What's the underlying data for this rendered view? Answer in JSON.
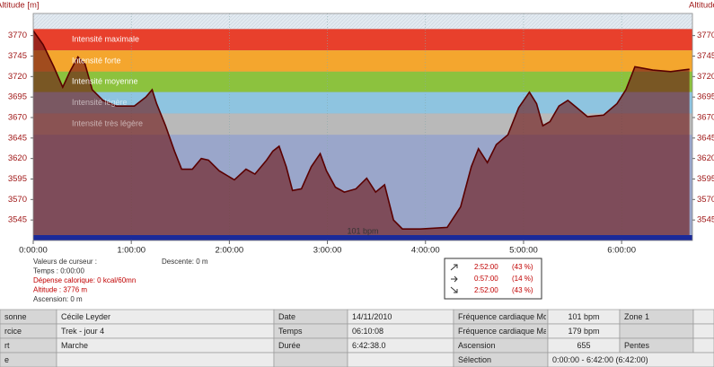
{
  "chart_data": {
    "type": "area",
    "y_label": "Altitude [m]",
    "y2_label": "Altitude",
    "x": [
      0,
      361,
      755,
      1083,
      1346,
      1641,
      1904,
      2166,
      2560,
      3052,
      3709,
      4135,
      4365,
      4529,
      4857,
      5186,
      5448,
      5842,
      6170,
      6433,
      6826,
      7384,
      7811,
      8139,
      8566,
      8796,
      9026,
      9288,
      9518,
      9846,
      10207,
      10535,
      10765,
      11093,
      11421,
      11848,
      12242,
      12570,
      12898,
      13226,
      13555,
      14211,
      15196,
      15688,
      16082,
      16344,
      16672,
      17000,
      17427,
      17821,
      18215,
      18477,
      18707,
      18970,
      19298,
      19626,
      19954,
      20348,
      20939,
      21431,
      21759,
      22088,
      22744,
      23400,
      24090
    ],
    "series": [
      {
        "name": "Altitude",
        "color": "#5a0000",
        "values": [
          3776,
          3759,
          3732,
          3707,
          3726,
          3744,
          3735,
          3704,
          3691,
          3684,
          3684,
          3695,
          3704,
          3687,
          3660,
          3629,
          3607,
          3607,
          3620,
          3618,
          3605,
          3594,
          3607,
          3601,
          3618,
          3629,
          3635,
          3610,
          3581,
          3583,
          3610,
          3626,
          3605,
          3585,
          3579,
          3583,
          3596,
          3579,
          3588,
          3545,
          3534,
          3534,
          3536,
          3561,
          3610,
          3632,
          3615,
          3637,
          3649,
          3682,
          3701,
          3687,
          3660,
          3665,
          3684,
          3691,
          3682,
          3671,
          3673,
          3687,
          3704,
          3732,
          3728,
          3726,
          3729
        ]
      }
    ],
    "zones": [
      {
        "name": "Intensité maximale",
        "color": "#e8402c",
        "from": 3752,
        "to": 3778
      },
      {
        "name": "Intensité forte",
        "color": "#f4a62e",
        "from": 3726,
        "to": 3752
      },
      {
        "name": "Intensité moyenne",
        "color": "#8cc23e",
        "from": 3701,
        "to": 3726
      },
      {
        "name": "Intensité légère",
        "color": "#8ec4e0",
        "from": 3675,
        "to": 3701
      },
      {
        "name": "Intensité très légère",
        "color": "#b9b9b9",
        "from": 3649,
        "to": 3675
      }
    ],
    "annotation": "101 bpm",
    "xlim": [
      0,
      24200
    ],
    "ylim": [
      3520,
      3797
    ],
    "xticks": [
      {
        "value": 0,
        "label": "0:00:00"
      },
      {
        "value": 3600,
        "label": "1:00:00"
      },
      {
        "value": 7200,
        "label": "2:00:00"
      },
      {
        "value": 10800,
        "label": "3:00:00"
      },
      {
        "value": 14400,
        "label": "4:00:00"
      },
      {
        "value": 18000,
        "label": "5:00:00"
      },
      {
        "value": 21600,
        "label": "6:00:00"
      }
    ],
    "yticks": [
      3545,
      3570,
      3595,
      3620,
      3645,
      3670,
      3695,
      3720,
      3745,
      3770
    ],
    "grid": true
  },
  "cursor": {
    "title": "Valeurs de curseur :",
    "lines": [
      "Temps : 0:00:00",
      "Dépense calorique: 0 kcal/60mn",
      "Altitude : 3776 m",
      "Ascension: 0 m"
    ],
    "descent": "Descente: 0 m"
  },
  "slopes": [
    {
      "time": "2:52:00",
      "share": "(43 %)"
    },
    {
      "time": "0:57:00",
      "share": "(14 %)"
    },
    {
      "time": "2:52:00",
      "share": "(43 %)"
    }
  ],
  "table": {
    "rows": [
      [
        "sonne",
        "Cécile Leyder",
        "Date",
        "14/11/2010",
        "Fréquence cardiaque Mo",
        "101 bpm",
        "Zone 1",
        null
      ],
      [
        "rcice",
        "Trek - jour 4",
        "Temps",
        "06:10:08",
        "Fréquence cardiaque Ma",
        "179 bpm",
        null,
        null
      ],
      [
        "rt",
        "Marche",
        "Durée",
        "6:42:38.0",
        "Ascension",
        "655",
        "Pentes",
        null
      ],
      [
        "e",
        null,
        null,
        null,
        "Sélection",
        "0:00:00 - 6:42:00 (6:42:00)"
      ]
    ]
  }
}
